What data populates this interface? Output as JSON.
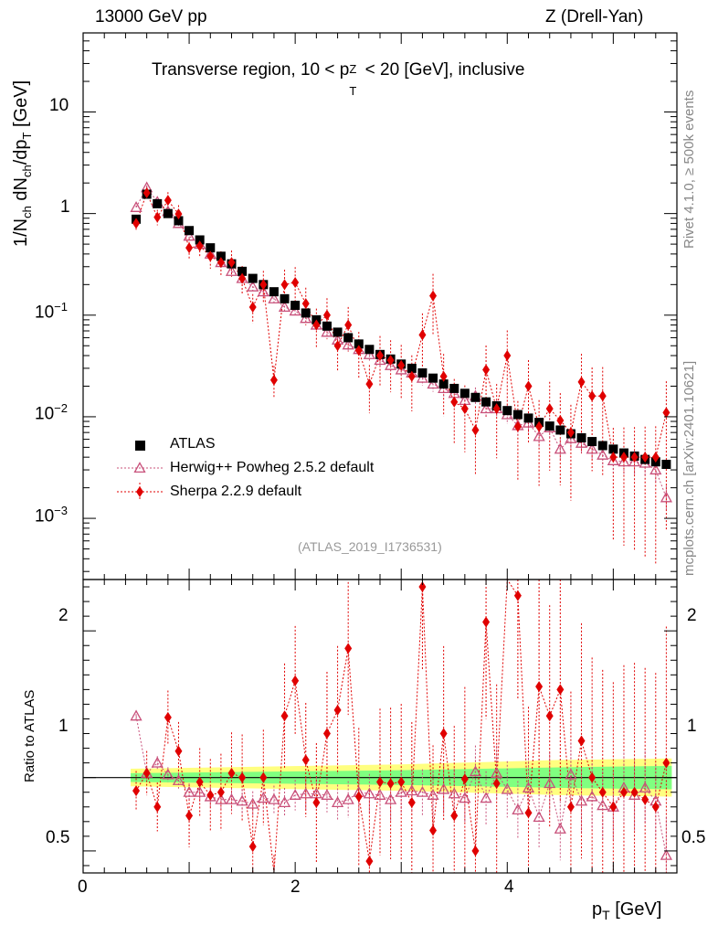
{
  "header": {
    "left": "13000 GeV pp",
    "right": "Z (Drell-Yan)"
  },
  "side": {
    "rivet": "Rivet 4.1.0, ≥ 500k events",
    "mcplots": "mcplots.cern.ch [arXiv:2401.10621]"
  },
  "labels": {
    "plot_title": "Transverse region, 10 < p",
    "plot_title_sub": "T",
    "plot_title_sup": "Z",
    "plot_title_end": " < 20 [GeV], inclusive",
    "ylabel": "1/N",
    "ylabel_sub1": "ch",
    "ylabel_mid": " dN",
    "ylabel_sub2": "ch",
    "ylabel_mid2": "/dp",
    "ylabel_sub3": "T",
    "ylabel_end": " [GeV]",
    "ratio_ylabel": "Ratio to ATLAS",
    "xlabel": "p",
    "xlabel_sub": "T",
    "xlabel_end": " [GeV]",
    "analysis": "(ATLAS_2019_I1736531)"
  },
  "ticks": {
    "x": [
      "0",
      "2",
      "4"
    ],
    "main_y_base": [
      "10",
      "1",
      "10",
      "10",
      "10"
    ],
    "main_y_exp": [
      "",
      "",
      "−1",
      "−2",
      "−3"
    ],
    "ratio_y": [
      "2",
      "1",
      "0.5"
    ]
  },
  "legend": [
    {
      "label": "ATLAS"
    },
    {
      "label": "Herwig++ Powheg 2.5.2 default"
    },
    {
      "label": "Sherpa 2.2.9 default"
    }
  ],
  "colors": {
    "atlas": "#000000",
    "herwig": "#c8507a",
    "sherpa": "#e00000",
    "band_outer": "#ffff80",
    "band_inner": "#80ff80"
  },
  "chart_data": {
    "type": "scatter",
    "title": "Transverse region, 10 < pT^Z < 20 [GeV], inclusive",
    "xlabel": "pT [GeV]",
    "ylabel": "1/Nch dNch/dpT [GeV]",
    "xlim": [
      0,
      5.6
    ],
    "ylim": [
      0.00025,
      60
    ],
    "yscale": "log",
    "ratio_ylabel": "Ratio to ATLAS",
    "ratio_ylim": [
      0.35,
      2.35
    ],
    "x": [
      0.5,
      0.6,
      0.7,
      0.8,
      0.9,
      1.0,
      1.1,
      1.2,
      1.3,
      1.4,
      1.5,
      1.6,
      1.7,
      1.8,
      1.9,
      2.0,
      2.1,
      2.2,
      2.3,
      2.4,
      2.5,
      2.6,
      2.7,
      2.8,
      2.9,
      3.0,
      3.1,
      3.2,
      3.3,
      3.4,
      3.5,
      3.6,
      3.7,
      3.8,
      3.9,
      4.0,
      4.1,
      4.2,
      4.3,
      4.4,
      4.5,
      4.6,
      4.7,
      4.8,
      4.9,
      5.0,
      5.1,
      5.2,
      5.3,
      5.4,
      5.5
    ],
    "series": [
      {
        "name": "ATLAS",
        "values": [
          0.88,
          1.55,
          1.25,
          1.0,
          0.85,
          0.68,
          0.55,
          0.46,
          0.38,
          0.32,
          0.27,
          0.23,
          0.2,
          0.17,
          0.145,
          0.125,
          0.105,
          0.09,
          0.078,
          0.068,
          0.06,
          0.052,
          0.046,
          0.041,
          0.037,
          0.033,
          0.03,
          0.027,
          0.024,
          0.021,
          0.019,
          0.017,
          0.0155,
          0.014,
          0.0128,
          0.0115,
          0.0105,
          0.0097,
          0.0088,
          0.0081,
          0.0074,
          0.0068,
          0.0062,
          0.0057,
          0.0052,
          0.0048,
          0.0044,
          0.0041,
          0.0038,
          0.0036,
          0.0034
        ]
      },
      {
        "name": "Herwig++ Powheg 2.5.2 default",
        "values": [
          1.15,
          1.8,
          1.3,
          1.05,
          0.8,
          0.6,
          0.5,
          0.4,
          0.33,
          0.27,
          0.23,
          0.19,
          0.17,
          0.145,
          0.12,
          0.11,
          0.093,
          0.08,
          0.068,
          0.057,
          0.051,
          0.046,
          0.041,
          0.036,
          0.032,
          0.029,
          0.027,
          0.024,
          0.021,
          0.019,
          0.017,
          0.0145,
          0.016,
          0.012,
          0.012,
          0.0105,
          0.0082,
          0.0087,
          0.0064,
          0.0078,
          0.0048,
          0.0061,
          0.0055,
          0.0048,
          0.0042,
          0.0037,
          0.0036,
          0.0036,
          0.0035,
          0.003,
          0.0016
        ]
      },
      {
        "name": "Sherpa 2.2.9 default",
        "values": [
          0.8,
          1.6,
          0.92,
          1.35,
          0.99,
          0.46,
          0.48,
          0.38,
          0.33,
          0.33,
          0.23,
          0.12,
          0.2,
          0.023,
          0.2,
          0.21,
          0.13,
          0.08,
          0.1,
          0.05,
          0.08,
          0.045,
          0.021,
          0.04,
          0.036,
          0.032,
          0.025,
          0.064,
          0.155,
          0.025,
          0.014,
          0.012,
          0.0074,
          0.029,
          0.012,
          0.04,
          0.008,
          0.02,
          0.008,
          0.012,
          0.0092,
          0.007,
          0.022,
          0.016,
          0.016,
          0.004,
          0.004,
          0.004,
          0.004,
          0.004,
          0.011
        ]
      }
    ],
    "ratio_series": [
      {
        "name": "Herwig++ Powheg 2.5.2 default",
        "values": [
          1.42,
          1.03,
          1.1,
          1.02,
          0.98,
          0.9,
          0.9,
          0.87,
          0.85,
          0.85,
          0.84,
          0.82,
          0.86,
          0.85,
          0.83,
          0.88,
          0.89,
          0.89,
          0.88,
          0.83,
          0.85,
          0.9,
          0.89,
          0.88,
          0.85,
          0.9,
          0.91,
          0.9,
          0.88,
          0.92,
          0.89,
          0.86,
          1.04,
          0.86,
          1.03,
          0.92,
          0.78,
          0.93,
          0.73,
          0.96,
          0.65,
          1.02,
          0.84,
          0.87,
          0.81,
          0.8,
          0.93,
          0.88,
          0.93,
          0.84,
          0.47
        ]
      },
      {
        "name": "Sherpa 2.2.9 default",
        "values": [
          0.91,
          1.03,
          0.8,
          1.41,
          1.18,
          0.74,
          0.97,
          0.88,
          0.9,
          1.03,
          1.0,
          0.53,
          1.0,
          0.13,
          1.42,
          1.66,
          1.12,
          0.83,
          1.3,
          1.46,
          1.88,
          0.87,
          0.43,
          0.97,
          0.96,
          0.97,
          0.83,
          2.3,
          0.64,
          1.3,
          0.74,
          0.99,
          0.5,
          2.06,
          0.96,
          3.5,
          2.24,
          0.76,
          1.62,
          1.42,
          1.6,
          0.8,
          1.25,
          1.0,
          0.9,
          0.8,
          0.9,
          0.9,
          0.85,
          0.8,
          1.1
        ]
      }
    ]
  }
}
